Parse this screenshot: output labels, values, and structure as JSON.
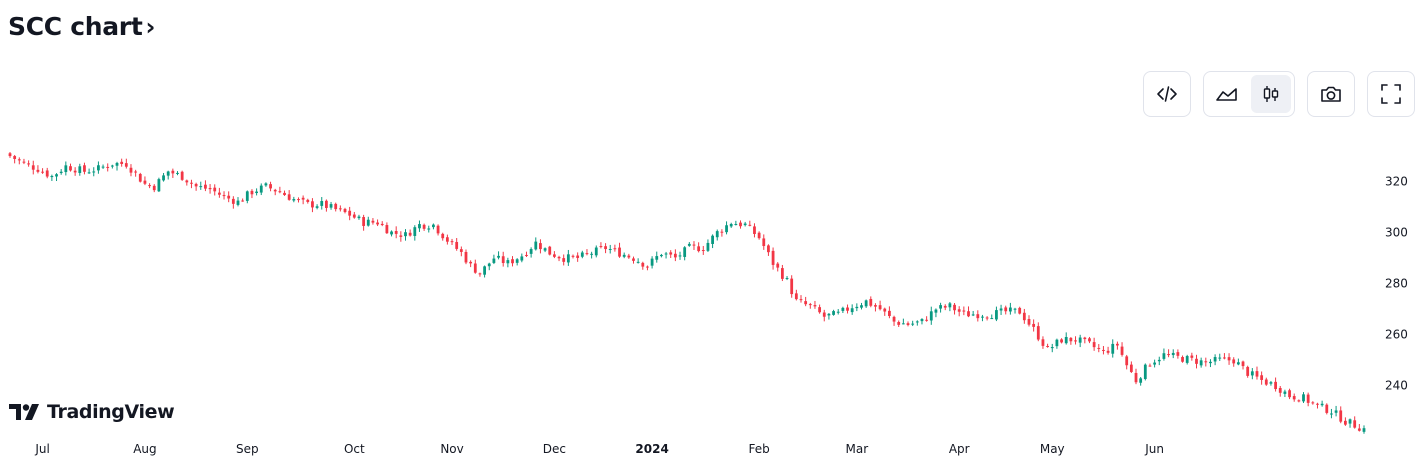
{
  "header": {
    "title": "SCC chart",
    "chevron": "›"
  },
  "toolbar": {
    "embed_icon": "code-embed-icon",
    "area_icon": "area-chart-icon",
    "candle_icon": "candlestick-icon",
    "snapshot_icon": "camera-icon",
    "fullscreen_icon": "fullscreen-icon",
    "active_style": "candles"
  },
  "brand": {
    "name": "TradingView",
    "logo_icon": "tradingview-logo-icon"
  },
  "colors": {
    "up": "#089981",
    "down": "#f23645",
    "text": "#131722"
  },
  "chart_data": {
    "type": "candlestick",
    "title": "SCC chart",
    "y_axis_labels": [
      "320",
      "300",
      "280",
      "260",
      "240"
    ],
    "y_ticks": [
      320,
      300,
      280,
      260,
      240
    ],
    "ylim": [
      222,
      336
    ],
    "x_axis_labels": [
      "Jul",
      "Aug",
      "Sep",
      "Oct",
      "Nov",
      "Dec",
      "2024",
      "Feb",
      "Mar",
      "Apr",
      "May",
      "Jun"
    ],
    "x_axis_bold": [
      false,
      false,
      false,
      false,
      false,
      false,
      true,
      false,
      false,
      false,
      false,
      false
    ],
    "x_label_positions": [
      44,
      65,
      87,
      108,
      130,
      151,
      173,
      194,
      216,
      237,
      259,
      280
    ],
    "total_sessions": 292,
    "close_anchors": [
      [
        0,
        330
      ],
      [
        3,
        327
      ],
      [
        6,
        325
      ],
      [
        9,
        322
      ],
      [
        12,
        326
      ],
      [
        16,
        324
      ],
      [
        19,
        325
      ],
      [
        22,
        327
      ],
      [
        25,
        327
      ],
      [
        27,
        323
      ],
      [
        29,
        319
      ],
      [
        31,
        318
      ],
      [
        34,
        324
      ],
      [
        37,
        322
      ],
      [
        40,
        318
      ],
      [
        43,
        317
      ],
      [
        46,
        314
      ],
      [
        49,
        312
      ],
      [
        52,
        316
      ],
      [
        55,
        318
      ],
      [
        58,
        316
      ],
      [
        61,
        313
      ],
      [
        64,
        311
      ],
      [
        67,
        311
      ],
      [
        70,
        309
      ],
      [
        73,
        307
      ],
      [
        76,
        304
      ],
      [
        79,
        304
      ],
      [
        82,
        300
      ],
      [
        85,
        299
      ],
      [
        88,
        303
      ],
      [
        91,
        303
      ],
      [
        94,
        297
      ],
      [
        97,
        292
      ],
      [
        99,
        287
      ],
      [
        101,
        284
      ],
      [
        104,
        290
      ],
      [
        107,
        288
      ],
      [
        110,
        291
      ],
      [
        113,
        296
      ],
      [
        116,
        292
      ],
      [
        119,
        290
      ],
      [
        122,
        290
      ],
      [
        125,
        292
      ],
      [
        128,
        294
      ],
      [
        131,
        292
      ],
      [
        134,
        290
      ],
      [
        137,
        287
      ],
      [
        140,
        292
      ],
      [
        143,
        290
      ],
      [
        146,
        294
      ],
      [
        149,
        294
      ],
      [
        152,
        300
      ],
      [
        155,
        304
      ],
      [
        158,
        303
      ],
      [
        161,
        298
      ],
      [
        164,
        288
      ],
      [
        167,
        281
      ],
      [
        169,
        273
      ],
      [
        172,
        271
      ],
      [
        175,
        267
      ],
      [
        178,
        268
      ],
      [
        181,
        271
      ],
      [
        184,
        273
      ],
      [
        187,
        270
      ],
      [
        190,
        265
      ],
      [
        193,
        264
      ],
      [
        196,
        265
      ],
      [
        199,
        270
      ],
      [
        202,
        271
      ],
      [
        205,
        268
      ],
      [
        208,
        268
      ],
      [
        211,
        268
      ],
      [
        214,
        269
      ],
      [
        217,
        269
      ],
      [
        220,
        262
      ],
      [
        223,
        254
      ],
      [
        226,
        258
      ],
      [
        229,
        258
      ],
      [
        232,
        256
      ],
      [
        235,
        253
      ],
      [
        238,
        256
      ],
      [
        240,
        248
      ],
      [
        242,
        242
      ],
      [
        245,
        249
      ],
      [
        248,
        252
      ],
      [
        251,
        251
      ],
      [
        254,
        250
      ],
      [
        257,
        249
      ],
      [
        260,
        250
      ],
      [
        263,
        250
      ],
      [
        266,
        245
      ],
      [
        269,
        242
      ],
      [
        272,
        240
      ],
      [
        275,
        236
      ],
      [
        278,
        235
      ],
      [
        281,
        232
      ],
      [
        284,
        230
      ],
      [
        287,
        226
      ],
      [
        291,
        223
      ]
    ]
  }
}
